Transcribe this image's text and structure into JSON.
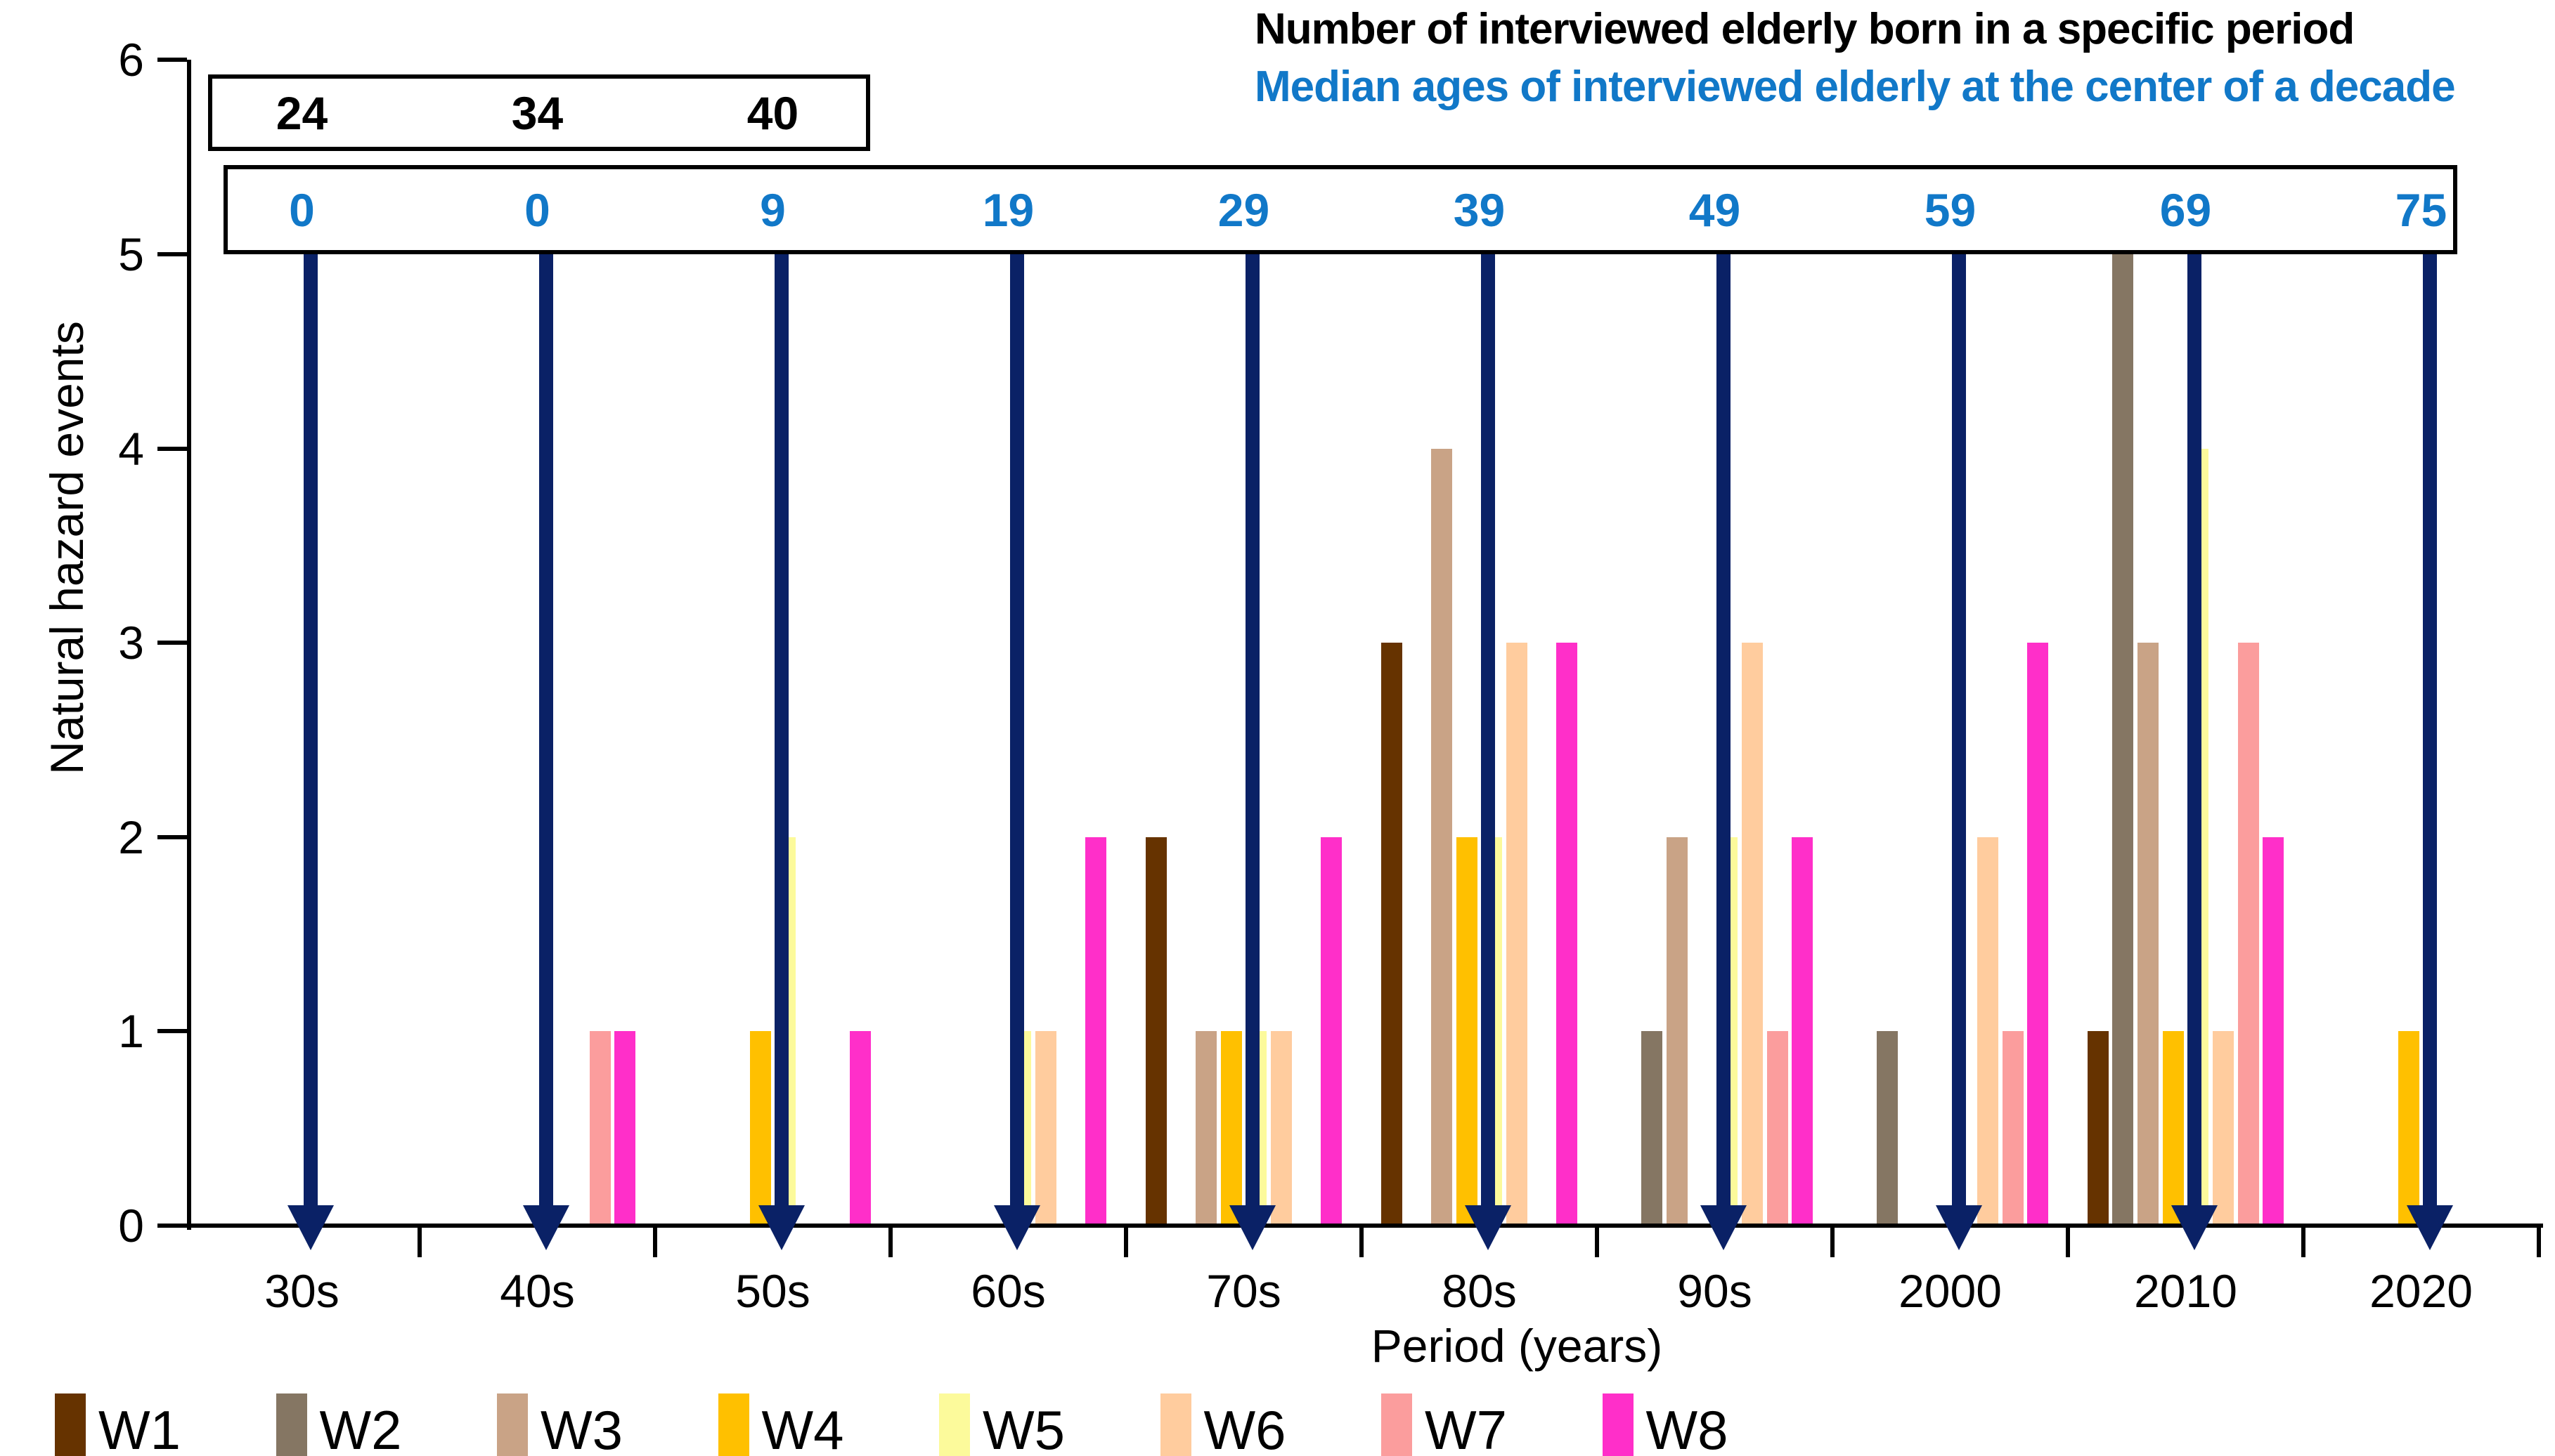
{
  "header": {
    "title_line1": "Number of interviewed elderly born in a specific period",
    "title_line2": "Median ages of interviewed elderly at the center of a decade"
  },
  "colors": {
    "arrow_navy": "#0A2166",
    "accent_blue": "#1178C8",
    "axis_black": "#000000"
  },
  "chart_data": {
    "type": "bar",
    "title": "",
    "categories": [
      "30s",
      "40s",
      "50s",
      "60s",
      "70s",
      "80s",
      "90s",
      "2000",
      "2010",
      "2020"
    ],
    "series": [
      {
        "name": "W1",
        "color": "#663300",
        "values": [
          0,
          0,
          0,
          0,
          2,
          3,
          0,
          0,
          1,
          0
        ]
      },
      {
        "name": "W2",
        "color": "#857663",
        "values": [
          0,
          0,
          0,
          0,
          0,
          0,
          1,
          1,
          5,
          0
        ]
      },
      {
        "name": "W3",
        "color": "#C9A386",
        "values": [
          0,
          0,
          0,
          0,
          1,
          4,
          2,
          0,
          3,
          0
        ]
      },
      {
        "name": "W4",
        "color": "#FFC000",
        "values": [
          0,
          0,
          1,
          0,
          1,
          2,
          0,
          0,
          1,
          1
        ]
      },
      {
        "name": "W5",
        "color": "#FCFA9B",
        "values": [
          0,
          0,
          2,
          1,
          1,
          2,
          2,
          0,
          4,
          0
        ]
      },
      {
        "name": "W6",
        "color": "#FFCC9E",
        "values": [
          0,
          0,
          0,
          1,
          1,
          3,
          3,
          2,
          1,
          0
        ]
      },
      {
        "name": "W7",
        "color": "#FB9D9D",
        "values": [
          0,
          1,
          0,
          0,
          0,
          0,
          1,
          1,
          3,
          0
        ]
      },
      {
        "name": "W8",
        "color": "#FF2FC9",
        "values": [
          0,
          1,
          1,
          2,
          2,
          3,
          2,
          3,
          2,
          0
        ]
      }
    ],
    "xlabel": "Period (years)",
    "ylabel": "Natural hazard events",
    "ylim": [
      0,
      6
    ],
    "yticks": [
      0,
      1,
      2,
      3,
      4,
      5,
      6
    ],
    "grid": false,
    "legend_position": "bottom",
    "annotations": {
      "born_counts": {
        "description": "Number of interviewed elderly born in a specific period",
        "decades": [
          "30s",
          "40s",
          "50s"
        ],
        "values": [
          24,
          34,
          40
        ]
      },
      "median_ages": {
        "description": "Median ages of interviewed elderly at the center of a decade",
        "values": [
          0,
          0,
          9,
          19,
          29,
          39,
          49,
          59,
          69,
          75
        ]
      }
    }
  }
}
